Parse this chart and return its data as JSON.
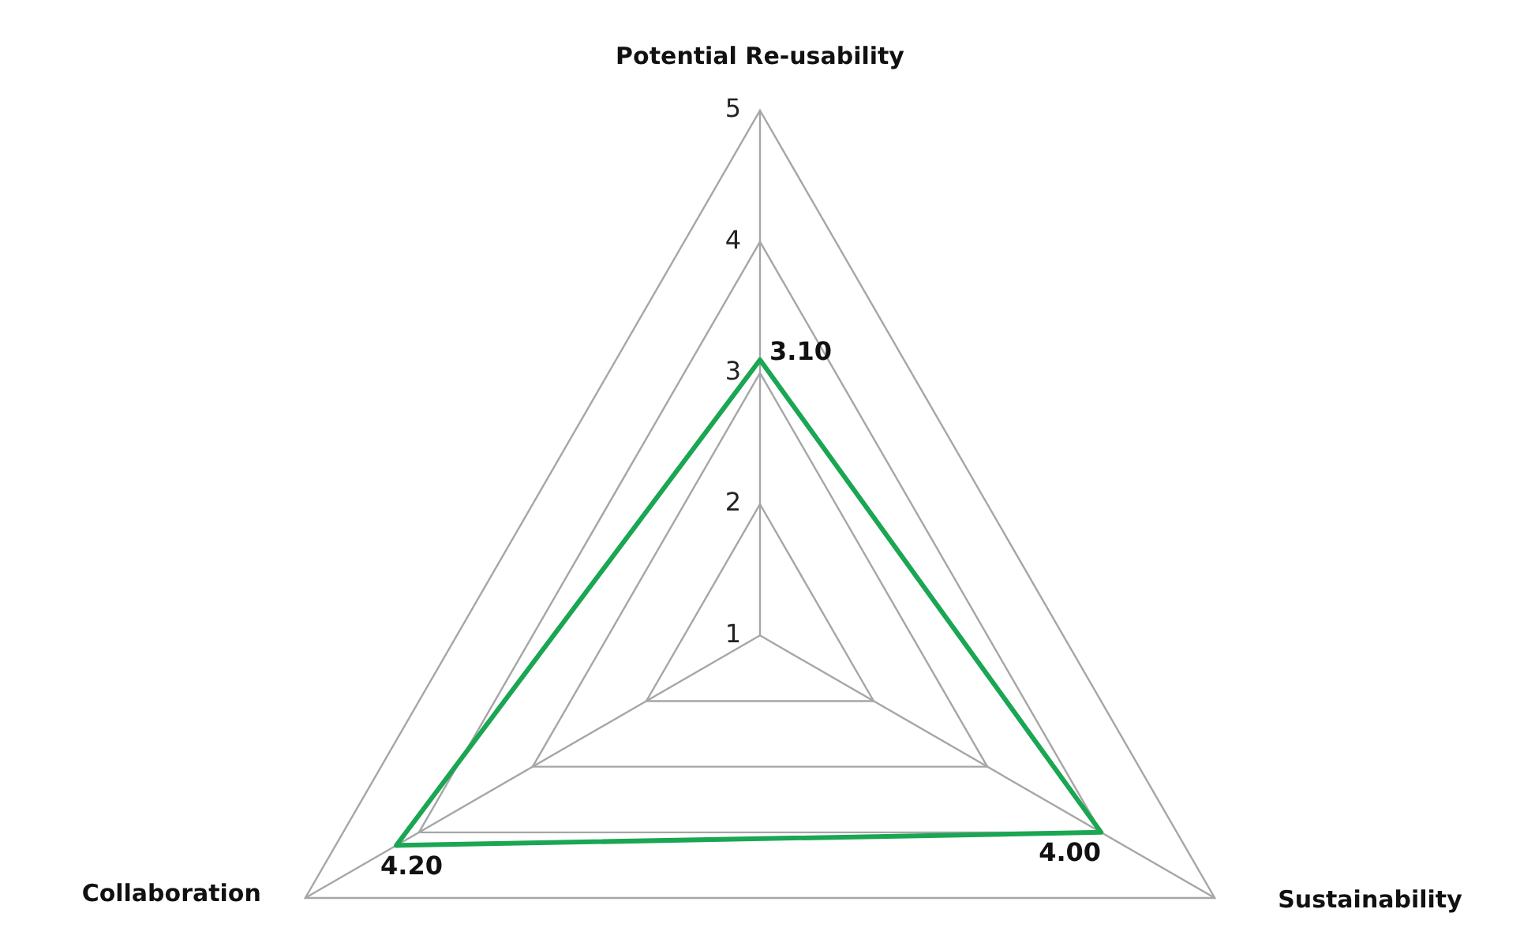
{
  "chart_data": {
    "type": "radar",
    "categories": [
      "Potential Re-usability",
      "Sustainability",
      "Collaboration"
    ],
    "series": [
      {
        "color": "#1aa652",
        "values": [
          3.1,
          4.0,
          4.2
        ],
        "value_labels": [
          "3.10",
          "4.00",
          "4.20"
        ]
      }
    ],
    "ylim": [
      1,
      5
    ],
    "yticks": [
      1,
      2,
      3,
      4,
      5
    ],
    "grid": true,
    "legend": false,
    "marker": "none",
    "line_style": "solid"
  }
}
